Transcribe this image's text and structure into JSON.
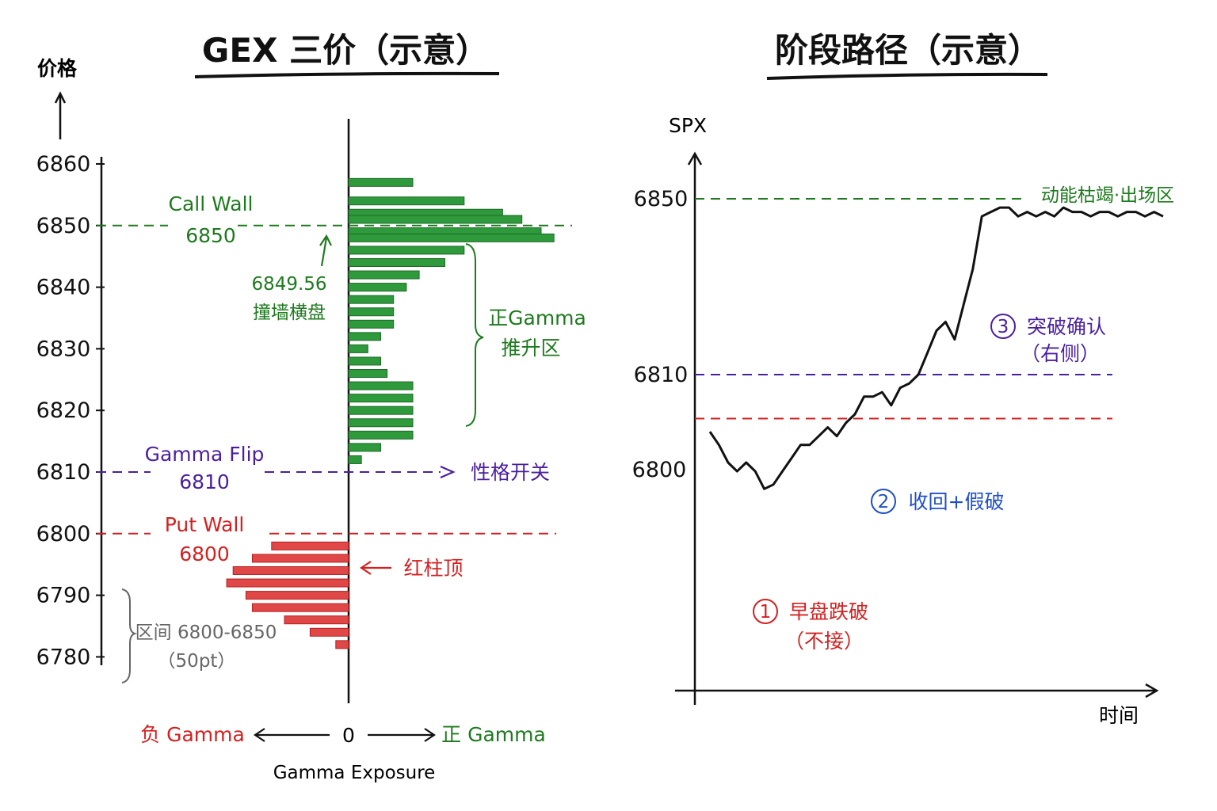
{
  "colors": {
    "ink": "#111111",
    "green": "#1e7a1e",
    "green_bar": "#2e9a3c",
    "purple": "#4a1f9e",
    "red": "#d42020",
    "blue": "#1f4fc8",
    "gray": "#666666"
  },
  "left": {
    "title": "GEX 三价（示意）",
    "y_axis_label": "价格",
    "x_axis_label": "Gamma Exposure",
    "x_neg": "负 Gamma",
    "x_zero": "0",
    "x_pos": "正 Gamma",
    "call_wall_label": "Call Wall",
    "call_wall_value": "6850",
    "gamma_flip_label": "Gamma Flip",
    "gamma_flip_value": "6810",
    "gamma_flip_note": "性格开关",
    "put_wall_label": "Put Wall",
    "put_wall_value": "6800",
    "spot_value": "6849.56",
    "spot_note": "撞墙横盘",
    "pos_zone_1": "正Gamma",
    "pos_zone_2": "推升区",
    "red_top_note": "红柱顶",
    "range_1": "区间 6800-6850",
    "range_2": "（50pt）"
  },
  "right": {
    "title": "阶段路径（示意）",
    "y_axis_label": "SPX",
    "x_axis_label": "时间",
    "level_6850": "6850",
    "level_6810": "6810",
    "level_6800": "6800",
    "zone_exit": "动能枯竭·出场区",
    "step1_num": "1",
    "step1_a": "早盘跌破",
    "step1_b": "（不接）",
    "step2_num": "2",
    "step2_a": "收回+假破",
    "step3_num": "3",
    "step3_a": "突破确认",
    "step3_b": "（右侧）"
  },
  "chart_data": [
    {
      "type": "bar",
      "orientation": "horizontal",
      "title": "GEX 三价（示意）",
      "ylabel": "价格",
      "xlabel": "Gamma Exposure",
      "y_ticks": [
        6860,
        6850,
        6840,
        6830,
        6820,
        6810,
        6800,
        6790,
        6780
      ],
      "ylim": [
        6778,
        6860
      ],
      "reference_lines": [
        {
          "name": "Call Wall",
          "y": 6850,
          "color": "#1e7a1e"
        },
        {
          "name": "Gamma Flip",
          "y": 6810,
          "color": "#4a1f9e"
        },
        {
          "name": "Put Wall",
          "y": 6800,
          "color": "#d42020"
        }
      ],
      "positive_gamma": {
        "prices": [
          6857,
          6854,
          6852,
          6851,
          6849,
          6848,
          6846,
          6844,
          6842,
          6840,
          6838,
          6836,
          6834,
          6832,
          6830,
          6828,
          6826,
          6824,
          6822,
          6820,
          6818,
          6816,
          6814,
          6812
        ],
        "values": [
          10,
          18,
          24,
          27,
          30,
          32,
          18,
          15,
          11,
          9,
          7,
          7,
          7,
          5,
          3,
          5,
          6,
          10,
          10,
          10,
          10,
          10,
          5,
          2
        ]
      },
      "negative_gamma": {
        "prices": [
          6798,
          6796,
          6794,
          6792,
          6790,
          6788,
          6786,
          6784,
          6782
        ],
        "values": [
          -12,
          -15,
          -18,
          -19,
          -16,
          -15,
          -10,
          -6,
          -2
        ]
      }
    },
    {
      "type": "line",
      "title": "阶段路径（示意）",
      "ylabel": "SPX",
      "xlabel": "时间",
      "y_ticks": [
        6850,
        6810,
        6800
      ],
      "ylim": [
        6776,
        6858
      ],
      "reference_lines": [
        {
          "y": 6850,
          "color": "#1e7a1e",
          "label": "动能枯竭·出场区"
        },
        {
          "y": 6810,
          "color": "#4a1f9e"
        },
        {
          "y": 6800,
          "color": "#d42020"
        }
      ],
      "x": [
        0,
        2,
        4,
        6,
        8,
        10,
        12,
        14,
        16,
        18,
        20,
        22,
        24,
        26,
        28,
        30,
        32,
        34,
        36,
        38,
        40,
        42,
        44,
        46,
        48,
        50,
        52,
        54,
        56,
        58,
        60,
        62,
        64,
        66,
        68,
        70,
        72,
        74,
        76,
        78,
        80,
        82,
        84,
        86,
        88,
        90,
        92,
        94,
        96,
        98,
        100
      ],
      "values": [
        6797,
        6794,
        6790,
        6788,
        6790,
        6788,
        6784,
        6785,
        6788,
        6791,
        6794,
        6794,
        6796,
        6798,
        6796,
        6799,
        6801,
        6805,
        6805,
        6806,
        6803,
        6807,
        6808,
        6810,
        6815,
        6820,
        6822,
        6818,
        6826,
        6834,
        6846,
        6847,
        6848,
        6848,
        6846,
        6847,
        6846,
        6847,
        6846,
        6848,
        6847,
        6847,
        6846,
        6847,
        6847,
        6846,
        6847,
        6847,
        6846,
        6847,
        6846
      ]
    }
  ]
}
